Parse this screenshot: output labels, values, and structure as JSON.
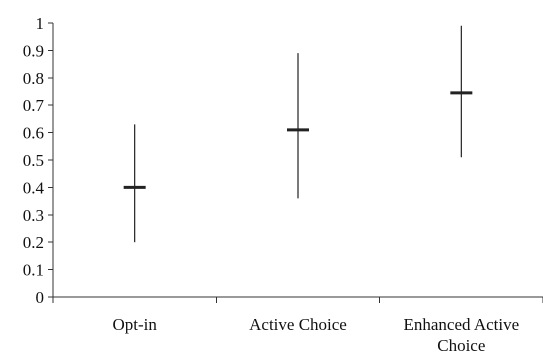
{
  "chart_data": {
    "type": "error-bar",
    "title": "",
    "xlabel": "",
    "ylabel": "",
    "ylim": [
      0,
      1
    ],
    "y_ticks": [
      0,
      0.1,
      0.2,
      0.3,
      0.4,
      0.5,
      0.6,
      0.7,
      0.8,
      0.9,
      1
    ],
    "y_tick_labels": [
      "0",
      "0.1",
      "0.2",
      "0.3",
      "0.4",
      "0.5",
      "0.6",
      "0.7",
      "0.8",
      "0.9",
      "1"
    ],
    "categories": [
      "Opt-in",
      "Active Choice",
      "Enhanced Active Choice"
    ],
    "category_label_lines": [
      [
        "Opt-in"
      ],
      [
        "Active Choice"
      ],
      [
        "Enhanced Active",
        "Choice"
      ]
    ],
    "mean": [
      0.4,
      0.61,
      0.745
    ],
    "low": [
      0.2,
      0.36,
      0.51
    ],
    "high": [
      0.63,
      0.89,
      0.99
    ],
    "grid": false,
    "legend": "none",
    "colors": {
      "axis": "#333333",
      "marks": "#222222"
    }
  }
}
